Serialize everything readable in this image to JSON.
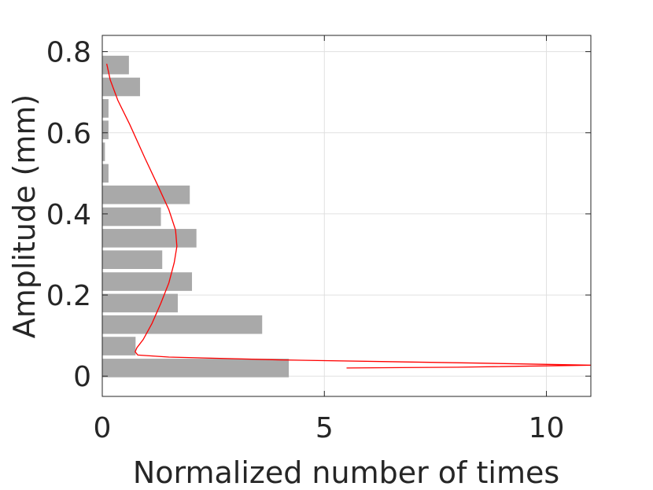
{
  "chart_data": {
    "type": "bar",
    "orientation": "horizontal",
    "xlabel": "Normalized number of times",
    "ylabel": "Amplitude (mm)",
    "xlim": [
      0,
      11
    ],
    "ylim": [
      -0.05,
      0.84
    ],
    "xticks": [
      0,
      5,
      10
    ],
    "yticks": [
      0,
      0.2,
      0.4,
      0.6,
      0.8
    ],
    "grid": true,
    "bin_width": 0.052,
    "colors": {
      "bars": "#a9a9a9",
      "curve": "#ff0000",
      "grid": "#e0e0e0",
      "axis": "#262626"
    },
    "series": [
      {
        "values": [
          {
            "y": 0.02,
            "x": 4.2
          },
          {
            "y": 0.074,
            "x": 0.75
          },
          {
            "y": 0.127,
            "x": 3.6
          },
          {
            "y": 0.18,
            "x": 1.7
          },
          {
            "y": 0.233,
            "x": 2.02
          },
          {
            "y": 0.287,
            "x": 1.35
          },
          {
            "y": 0.34,
            "x": 2.12
          },
          {
            "y": 0.393,
            "x": 1.32
          },
          {
            "y": 0.447,
            "x": 1.97
          },
          {
            "y": 0.5,
            "x": 0.14
          },
          {
            "y": 0.553,
            "x": 0.06
          },
          {
            "y": 0.607,
            "x": 0.14
          },
          {
            "y": 0.66,
            "x": 0.14
          },
          {
            "y": 0.713,
            "x": 0.85
          },
          {
            "y": 0.767,
            "x": 0.6
          }
        ]
      },
      {
        "type": "line",
        "points": [
          {
            "x": 5.5,
            "y": 0.02
          },
          {
            "x": 8.0,
            "y": 0.022
          },
          {
            "x": 11.0,
            "y": 0.027
          },
          {
            "x": 8.5,
            "y": 0.032
          },
          {
            "x": 4.0,
            "y": 0.04
          },
          {
            "x": 1.5,
            "y": 0.047
          },
          {
            "x": 0.8,
            "y": 0.052
          },
          {
            "x": 0.74,
            "y": 0.06
          },
          {
            "x": 0.78,
            "y": 0.07
          },
          {
            "x": 0.92,
            "y": 0.09
          },
          {
            "x": 1.12,
            "y": 0.13
          },
          {
            "x": 1.32,
            "y": 0.18
          },
          {
            "x": 1.5,
            "y": 0.23
          },
          {
            "x": 1.62,
            "y": 0.28
          },
          {
            "x": 1.68,
            "y": 0.32
          },
          {
            "x": 1.65,
            "y": 0.36
          },
          {
            "x": 1.5,
            "y": 0.41
          },
          {
            "x": 1.25,
            "y": 0.47
          },
          {
            "x": 0.95,
            "y": 0.54
          },
          {
            "x": 0.62,
            "y": 0.62
          },
          {
            "x": 0.35,
            "y": 0.68
          },
          {
            "x": 0.18,
            "y": 0.73
          },
          {
            "x": 0.1,
            "y": 0.77
          }
        ]
      }
    ]
  }
}
